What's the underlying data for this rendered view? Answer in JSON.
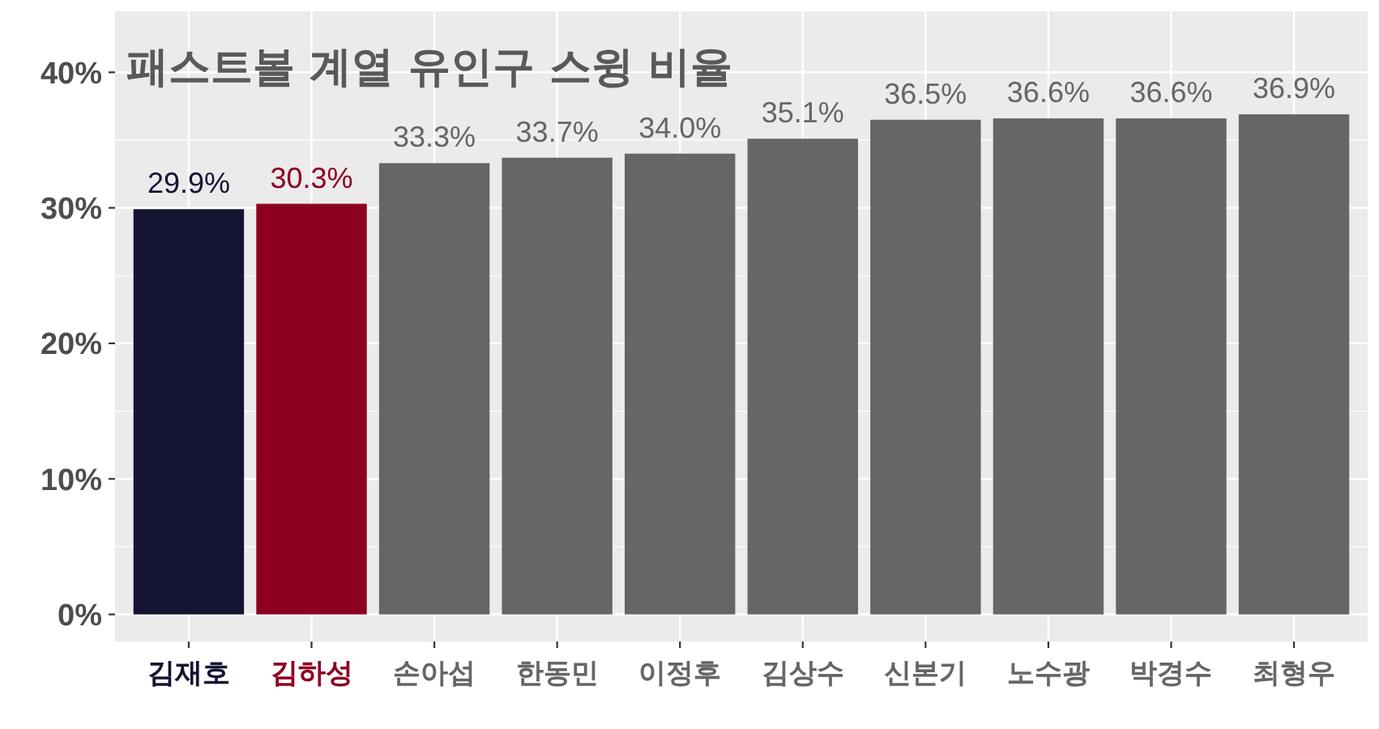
{
  "chart_data": {
    "type": "bar",
    "title": "패스트볼 계열 유인구 스윙 비율",
    "categories": [
      "김재호",
      "김하성",
      "손아섭",
      "한동민",
      "이정후",
      "김상수",
      "신본기",
      "노수광",
      "박경수",
      "최형우"
    ],
    "values": [
      29.9,
      30.3,
      33.3,
      33.7,
      34.0,
      35.1,
      36.5,
      36.6,
      36.6,
      36.9
    ],
    "colors": [
      "#141432",
      "#8e0022",
      "#666666",
      "#666666",
      "#666666",
      "#666666",
      "#666666",
      "#666666",
      "#666666",
      "#666666"
    ],
    "value_labels": [
      "29.9%",
      "30.3%",
      "33.3%",
      "33.7%",
      "34.0%",
      "35.1%",
      "36.5%",
      "36.6%",
      "36.6%",
      "36.9%"
    ],
    "ylim": [
      -2,
      44.5
    ],
    "yticks": [
      {
        "value": 0,
        "label": "0%"
      },
      {
        "value": 5,
        "label": null
      },
      {
        "value": 10,
        "label": "10%"
      },
      {
        "value": 15,
        "label": null
      },
      {
        "value": 20,
        "label": "20%"
      },
      {
        "value": 25,
        "label": null
      },
      {
        "value": 30,
        "label": "30%"
      },
      {
        "value": 35,
        "label": null
      },
      {
        "value": 40,
        "label": "40%"
      }
    ],
    "grid": true
  }
}
